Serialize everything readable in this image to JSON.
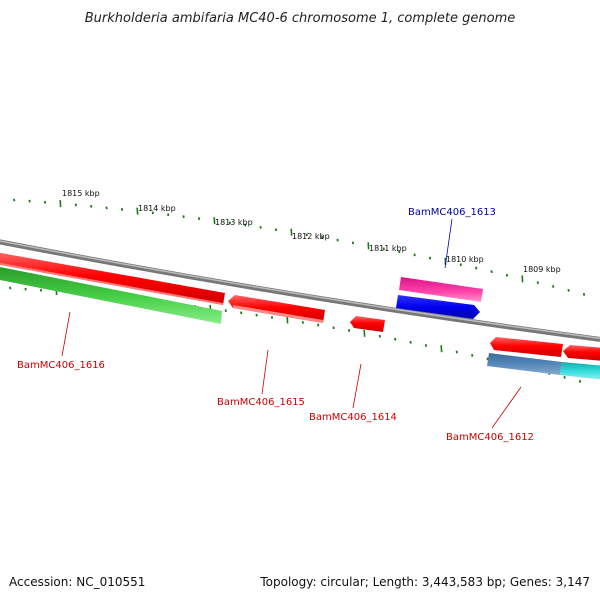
{
  "title": "Burkholderia ambifaria MC40-6 chromosome 1, complete genome",
  "footer": {
    "accession": "Accession: NC_010551",
    "stats": "Topology: circular; Length: 3,443,583 bp; Genes: 3,147"
  },
  "scale_labels": [
    "1815 kbp",
    "1814 kbp",
    "1813 kbp",
    "1812 kbp",
    "1811 kbp",
    "1810 kbp",
    "1809 kbp"
  ],
  "genes": [
    {
      "id": "BamMC406_1613",
      "label": "BamMC406_1613",
      "color": "#0000aa"
    },
    {
      "id": "BamMC406_1616",
      "label": "BamMC406_1616",
      "color": "#cc0000"
    },
    {
      "id": "BamMC406_1615",
      "label": "BamMC406_1615",
      "color": "#cc0000"
    },
    {
      "id": "BamMC406_1614",
      "label": "BamMC406_1614",
      "color": "#cc0000"
    },
    {
      "id": "BamMC406_1612",
      "label": "BamMC406_1612",
      "color": "#cc0000"
    }
  ],
  "colors": {
    "backbone": "#888888",
    "red_gene": "#ff0000",
    "green_gene": "#33bb33",
    "magenta_gene": "#ee2299",
    "blue_gene": "#0000ee",
    "steel_gene": "#4477aa",
    "cyan_gene": "#22cccc",
    "tick": "#1a7a1a"
  }
}
